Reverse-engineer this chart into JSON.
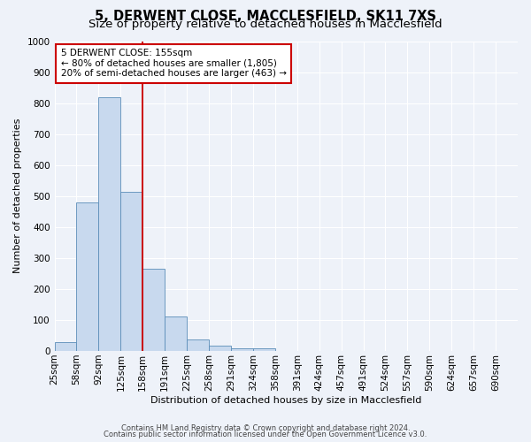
{
  "title1": "5, DERWENT CLOSE, MACCLESFIELD, SK11 7XS",
  "title2": "Size of property relative to detached houses in Macclesfield",
  "xlabel": "Distribution of detached houses by size in Macclesfield",
  "ylabel": "Number of detached properties",
  "bin_labels": [
    "25sqm",
    "58sqm",
    "92sqm",
    "125sqm",
    "158sqm",
    "191sqm",
    "225sqm",
    "258sqm",
    "291sqm",
    "324sqm",
    "358sqm",
    "391sqm",
    "424sqm",
    "457sqm",
    "491sqm",
    "524sqm",
    "557sqm",
    "590sqm",
    "624sqm",
    "657sqm",
    "690sqm"
  ],
  "bar_heights": [
    30,
    480,
    820,
    515,
    265,
    110,
    38,
    18,
    10,
    10,
    0,
    0,
    0,
    0,
    0,
    0,
    0,
    0,
    0,
    0
  ],
  "bar_color": "#c8d9ee",
  "bar_edge_color": "#5b8db8",
  "vline_x_index": 4,
  "vline_color": "#cc0000",
  "annotation_text": "5 DERWENT CLOSE: 155sqm\n← 80% of detached houses are smaller (1,805)\n20% of semi-detached houses are larger (463) →",
  "annotation_box_color": "#ffffff",
  "annotation_box_edge": "#cc0000",
  "ylim": [
    0,
    1000
  ],
  "yticks": [
    0,
    100,
    200,
    300,
    400,
    500,
    600,
    700,
    800,
    900,
    1000
  ],
  "footnote1": "Contains HM Land Registry data © Crown copyright and database right 2024.",
  "footnote2": "Contains public sector information licensed under the Open Government Licence v3.0.",
  "background_color": "#eef2f9",
  "grid_color": "#ffffff",
  "title1_fontsize": 10.5,
  "title2_fontsize": 9.5,
  "axis_fontsize": 8,
  "tick_fontsize": 7.5,
  "annotation_fontsize": 7.5,
  "footnote_fontsize": 6
}
